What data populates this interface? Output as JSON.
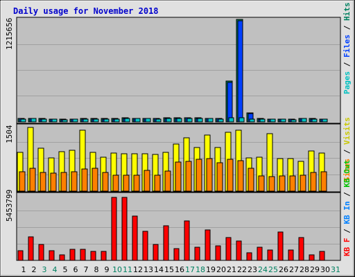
{
  "title": "Daily usage for November 2018",
  "colors": {
    "page_bg": "#ffffff",
    "frame_bg": "#e0e0e0",
    "panel_bg": "#c0c0c0",
    "title": "#0000cc",
    "pages": "#00c0c0",
    "files": "#0040ff",
    "hits": "#008060",
    "visits": "#ffff00",
    "sites": "#ff8000",
    "kbytes": "#ff0000",
    "kb_in": "#0080ff",
    "kb_out": "#00c000",
    "weekend": "#008060",
    "weekday": "#000000"
  },
  "chart_data": [
    {
      "type": "bar",
      "panel": "top",
      "ymax_label": "1215656",
      "ylim": [
        0,
        1215656
      ],
      "legend": [
        "Pages",
        "Files",
        "Hits"
      ],
      "categories": [
        "1",
        "2",
        "3",
        "4",
        "5",
        "6",
        "7",
        "8",
        "9",
        "10",
        "11",
        "12",
        "13",
        "14",
        "15",
        "16",
        "17",
        "18",
        "19",
        "20",
        "21",
        "22",
        "23",
        "24",
        "25",
        "26",
        "27",
        "28",
        "29",
        "30",
        "31"
      ],
      "series": [
        {
          "name": "Hits",
          "values": [
            42000,
            45000,
            38000,
            36000,
            30000,
            35000,
            40000,
            40000,
            38000,
            40000,
            46000,
            45000,
            44000,
            42000,
            48000,
            46000,
            52000,
            46000,
            44000,
            42000,
            485000,
            1215656,
            105000,
            38000,
            35000,
            36000,
            33000,
            44000,
            38000,
            35000,
            0
          ]
        },
        {
          "name": "Files",
          "values": [
            38000,
            41000,
            34000,
            32000,
            26000,
            31000,
            36000,
            36000,
            34000,
            36000,
            42000,
            41000,
            40000,
            38000,
            44000,
            42000,
            48000,
            42000,
            40000,
            38000,
            470000,
            1200000,
            100000,
            34000,
            31000,
            32000,
            29000,
            40000,
            34000,
            31000,
            0
          ]
        },
        {
          "name": "Pages",
          "values": [
            36000,
            38000,
            32000,
            30000,
            24000,
            29000,
            34000,
            34000,
            32000,
            34000,
            40000,
            39000,
            38000,
            36000,
            42000,
            40000,
            45000,
            40000,
            38000,
            36000,
            50000,
            52000,
            32000,
            32000,
            29000,
            30000,
            27000,
            38000,
            32000,
            29000,
            0
          ]
        }
      ]
    },
    {
      "type": "bar",
      "panel": "middle",
      "ymax_label": "1504",
      "ylim": [
        0,
        1504
      ],
      "legend": [
        "Visits",
        "Sites"
      ],
      "categories": [
        "1",
        "2",
        "3",
        "4",
        "5",
        "6",
        "7",
        "8",
        "9",
        "10",
        "11",
        "12",
        "13",
        "14",
        "15",
        "16",
        "17",
        "18",
        "19",
        "20",
        "21",
        "22",
        "23",
        "24",
        "25",
        "26",
        "27",
        "28",
        "29",
        "30",
        "31"
      ],
      "series": [
        {
          "name": "Visits",
          "values": [
            895,
            1475,
            985,
            775,
            910,
            940,
            1405,
            900,
            780,
            880,
            865,
            865,
            865,
            850,
            890,
            1095,
            1235,
            1015,
            1290,
            1005,
            1365,
            1400,
            775,
            780,
            1320,
            750,
            750,
            690,
            925,
            880,
            0
          ]
        },
        {
          "name": "Sites",
          "values": [
            445,
            530,
            425,
            415,
            430,
            445,
            510,
            535,
            435,
            375,
            375,
            375,
            485,
            375,
            470,
            665,
            695,
            735,
            755,
            655,
            740,
            700,
            530,
            355,
            335,
            345,
            350,
            375,
            425,
            445,
            0
          ]
        }
      ]
    },
    {
      "type": "bar",
      "panel": "bottom",
      "ymax_label": "5453799",
      "ylim": [
        0,
        5453799
      ],
      "legend": [
        "KB F",
        "KB In",
        "KB Out"
      ],
      "categories": [
        "1",
        "2",
        "3",
        "4",
        "5",
        "6",
        "7",
        "8",
        "9",
        "10",
        "11",
        "12",
        "13",
        "14",
        "15",
        "16",
        "17",
        "18",
        "19",
        "20",
        "21",
        "22",
        "23",
        "24",
        "25",
        "26",
        "27",
        "28",
        "29",
        "30",
        "31"
      ],
      "series": [
        {
          "name": "KB F",
          "values": [
            820000,
            2050000,
            1400000,
            820000,
            450000,
            980000,
            980000,
            780000,
            780000,
            5453799,
            5453799,
            3860000,
            2540000,
            1360000,
            2990000,
            1040000,
            3410000,
            1130000,
            2660000,
            1270000,
            1980000,
            1680000,
            650000,
            1130000,
            910000,
            2460000,
            870000,
            1990000,
            460000,
            780000,
            0
          ]
        }
      ]
    }
  ],
  "x_labels": [
    {
      "day": "1",
      "weekend": false
    },
    {
      "day": "2",
      "weekend": false
    },
    {
      "day": "3",
      "weekend": true
    },
    {
      "day": "4",
      "weekend": true
    },
    {
      "day": "5",
      "weekend": false
    },
    {
      "day": "6",
      "weekend": false
    },
    {
      "day": "7",
      "weekend": false
    },
    {
      "day": "8",
      "weekend": false
    },
    {
      "day": "9",
      "weekend": false
    },
    {
      "day": "10",
      "weekend": true
    },
    {
      "day": "11",
      "weekend": true
    },
    {
      "day": "12",
      "weekend": false
    },
    {
      "day": "13",
      "weekend": false
    },
    {
      "day": "14",
      "weekend": false
    },
    {
      "day": "15",
      "weekend": false
    },
    {
      "day": "16",
      "weekend": false
    },
    {
      "day": "17",
      "weekend": true
    },
    {
      "day": "18",
      "weekend": true
    },
    {
      "day": "19",
      "weekend": false
    },
    {
      "day": "20",
      "weekend": false
    },
    {
      "day": "21",
      "weekend": false
    },
    {
      "day": "22",
      "weekend": false
    },
    {
      "day": "23",
      "weekend": false
    },
    {
      "day": "24",
      "weekend": true
    },
    {
      "day": "25",
      "weekend": true
    },
    {
      "day": "26",
      "weekend": false
    },
    {
      "day": "27",
      "weekend": false
    },
    {
      "day": "28",
      "weekend": false
    },
    {
      "day": "29",
      "weekend": false
    },
    {
      "day": "30",
      "weekend": false
    },
    {
      "day": "31",
      "weekend": true
    }
  ],
  "legends": {
    "top": [
      {
        "text": "Pages",
        "color": "#00c0c0"
      },
      {
        "text": " / ",
        "color": "#000000"
      },
      {
        "text": "Files",
        "color": "#0040ff"
      },
      {
        "text": " / ",
        "color": "#000000"
      },
      {
        "text": "Hits",
        "color": "#008060"
      }
    ],
    "middle": [
      {
        "text": "Sites",
        "color": "#ff8000"
      },
      {
        "text": " / ",
        "color": "#000000"
      },
      {
        "text": "Visits",
        "color": "#c8c800"
      }
    ],
    "bottom": [
      {
        "text": "KB F",
        "color": "#ff0000"
      },
      {
        "text": " / ",
        "color": "#000000"
      },
      {
        "text": "KB In",
        "color": "#0080ff"
      },
      {
        "text": " / ",
        "color": "#000000"
      },
      {
        "text": "KB Out",
        "color": "#00c000"
      }
    ]
  }
}
